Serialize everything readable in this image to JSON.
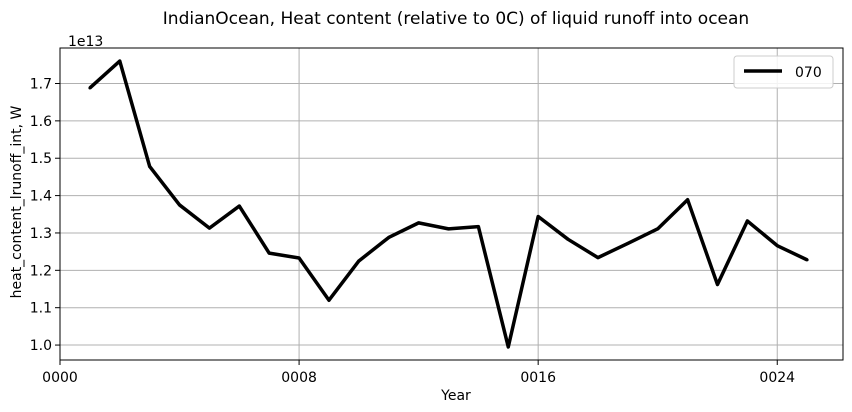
{
  "chart_data": {
    "type": "line",
    "title": "IndianOcean, Heat content (relative to 0C) of liquid runoff into ocean",
    "xlabel": "Year",
    "ylabel": "heat_content_lrunoff_int, W",
    "y_offset_text": "1e13",
    "xlim": [
      0,
      26.2
    ],
    "ylim": [
      0.96,
      1.795
    ],
    "x_ticks": [
      0,
      8,
      16,
      24
    ],
    "x_tick_labels": [
      "0000",
      "0008",
      "0016",
      "0024"
    ],
    "y_ticks": [
      1.0,
      1.1,
      1.2,
      1.3,
      1.4,
      1.5,
      1.6,
      1.7
    ],
    "y_tick_labels": [
      "1.0",
      "1.1",
      "1.2",
      "1.3",
      "1.4",
      "1.5",
      "1.6",
      "1.7"
    ],
    "grid": true,
    "legend_position": "top-right",
    "series": [
      {
        "name": "070",
        "color": "#000000",
        "x": [
          1,
          2,
          3,
          4,
          5,
          6,
          7,
          8,
          9,
          10,
          11,
          12,
          13,
          14,
          15,
          16,
          17,
          18,
          19,
          20,
          21,
          22,
          23,
          24,
          25
        ],
        "values": [
          1.688,
          1.76,
          1.478,
          1.375,
          1.313,
          1.372,
          1.246,
          1.233,
          1.12,
          1.225,
          1.288,
          1.327,
          1.311,
          1.317,
          0.995,
          1.344,
          1.283,
          1.234,
          1.272,
          1.311,
          1.389,
          1.162,
          1.332,
          1.266,
          1.228
        ]
      }
    ]
  }
}
